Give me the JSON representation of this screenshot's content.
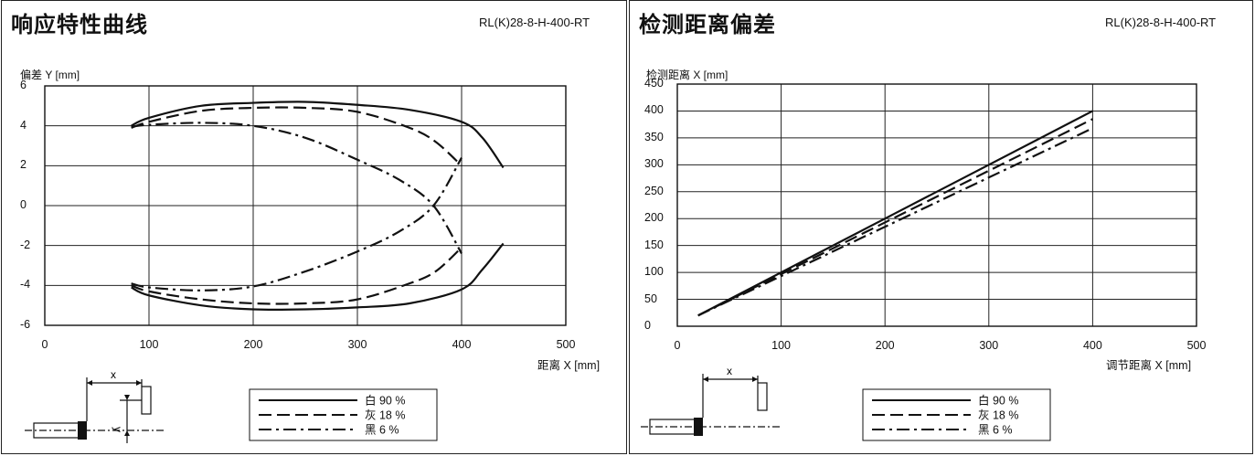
{
  "left": {
    "title": "响应特性曲线",
    "model": "RL(K)28-8-H-400-RT",
    "chart_data": {
      "type": "line",
      "ylabel": "偏差 Y [mm]",
      "xlabel": "距离 X [mm]",
      "xlim": [
        0,
        500
      ],
      "ylim": [
        -6,
        6
      ],
      "x_ticks": [
        "0",
        "100",
        "200",
        "300",
        "400",
        "500"
      ],
      "y_ticks": [
        "6",
        "4",
        "2",
        "0",
        "-2",
        "-4",
        "-6"
      ],
      "series": [
        {
          "name": "白 90 %",
          "style": "solid",
          "points": [
            [
              83,
              4.0
            ],
            [
              100,
              4.4
            ],
            [
              150,
              5.0
            ],
            [
              200,
              5.15
            ],
            [
              250,
              5.2
            ],
            [
              300,
              5.05
            ],
            [
              350,
              4.8
            ],
            [
              400,
              4.2
            ],
            [
              420,
              3.4
            ],
            [
              440,
              1.9
            ]
          ]
        },
        {
          "name": "白 90 %",
          "style": "solid",
          "points": [
            [
              83,
              -4.1
            ],
            [
              100,
              -4.5
            ],
            [
              150,
              -5.0
            ],
            [
              200,
              -5.2
            ],
            [
              250,
              -5.2
            ],
            [
              300,
              -5.1
            ],
            [
              350,
              -4.9
            ],
            [
              400,
              -4.2
            ],
            [
              420,
              -3.2
            ],
            [
              440,
              -1.9
            ]
          ]
        },
        {
          "name": "灰 18 %",
          "style": "dashed",
          "points": [
            [
              83,
              3.9
            ],
            [
              100,
              4.2
            ],
            [
              150,
              4.75
            ],
            [
              200,
              4.9
            ],
            [
              250,
              4.9
            ],
            [
              300,
              4.7
            ],
            [
              350,
              3.9
            ],
            [
              375,
              3.2
            ],
            [
              400,
              2.0
            ]
          ]
        },
        {
          "name": "灰 18 %",
          "style": "dashed",
          "points": [
            [
              83,
              -4.0
            ],
            [
              100,
              -4.3
            ],
            [
              150,
              -4.7
            ],
            [
              200,
              -4.9
            ],
            [
              250,
              -4.9
            ],
            [
              300,
              -4.7
            ],
            [
              350,
              -3.9
            ],
            [
              375,
              -3.3
            ],
            [
              400,
              -2.1
            ]
          ]
        },
        {
          "name": "黑 6 %",
          "style": "dashdot",
          "points": [
            [
              83,
              3.95
            ],
            [
              100,
              4.05
            ],
            [
              150,
              4.15
            ],
            [
              200,
              4.0
            ],
            [
              250,
              3.4
            ],
            [
              300,
              2.3
            ],
            [
              340,
              1.3
            ],
            [
              373,
              0
            ],
            [
              400,
              -2.4
            ]
          ]
        },
        {
          "name": "黑 6 %",
          "style": "dashdot",
          "points": [
            [
              83,
              -3.9
            ],
            [
              100,
              -4.1
            ],
            [
              150,
              -4.25
            ],
            [
              200,
              -4.05
            ],
            [
              250,
              -3.3
            ],
            [
              300,
              -2.3
            ],
            [
              340,
              -1.3
            ],
            [
              373,
              0
            ],
            [
              400,
              2.4
            ]
          ]
        }
      ],
      "legend": [
        {
          "label": "白 90 %",
          "style": "solid"
        },
        {
          "label": "灰 18 %",
          "style": "dashed"
        },
        {
          "label": "黑 6 %",
          "style": "dashdot"
        }
      ],
      "legend_position": "bottom-center"
    },
    "diagram": {
      "x_label": "x",
      "y_label": "y"
    }
  },
  "right": {
    "title": "检测距离偏差",
    "model": "RL(K)28-8-H-400-RT",
    "chart_data": {
      "type": "line",
      "ylabel": "检测距离 X [mm]",
      "xlabel": "调节距离 X [mm]",
      "xlim": [
        0,
        500
      ],
      "ylim": [
        0,
        450
      ],
      "x_ticks": [
        "0",
        "100",
        "200",
        "300",
        "400",
        "500"
      ],
      "y_ticks": [
        "450",
        "400",
        "350",
        "300",
        "250",
        "200",
        "150",
        "100",
        "50",
        "0"
      ],
      "series": [
        {
          "name": "白 90 %",
          "style": "solid",
          "points": [
            [
              20,
              20
            ],
            [
              400,
              400
            ]
          ]
        },
        {
          "name": "灰 18 %",
          "style": "dashed",
          "points": [
            [
              20,
              20
            ],
            [
              400,
              385
            ]
          ]
        },
        {
          "name": "黑 6 %",
          "style": "dashdot",
          "points": [
            [
              20,
              20
            ],
            [
              400,
              368
            ]
          ]
        }
      ],
      "legend": [
        {
          "label": "白 90 %",
          "style": "solid"
        },
        {
          "label": "灰 18 %",
          "style": "dashed"
        },
        {
          "label": "黑 6 %",
          "style": "dashdot"
        }
      ],
      "legend_position": "bottom-center"
    },
    "diagram": {
      "x_label": "x"
    }
  }
}
